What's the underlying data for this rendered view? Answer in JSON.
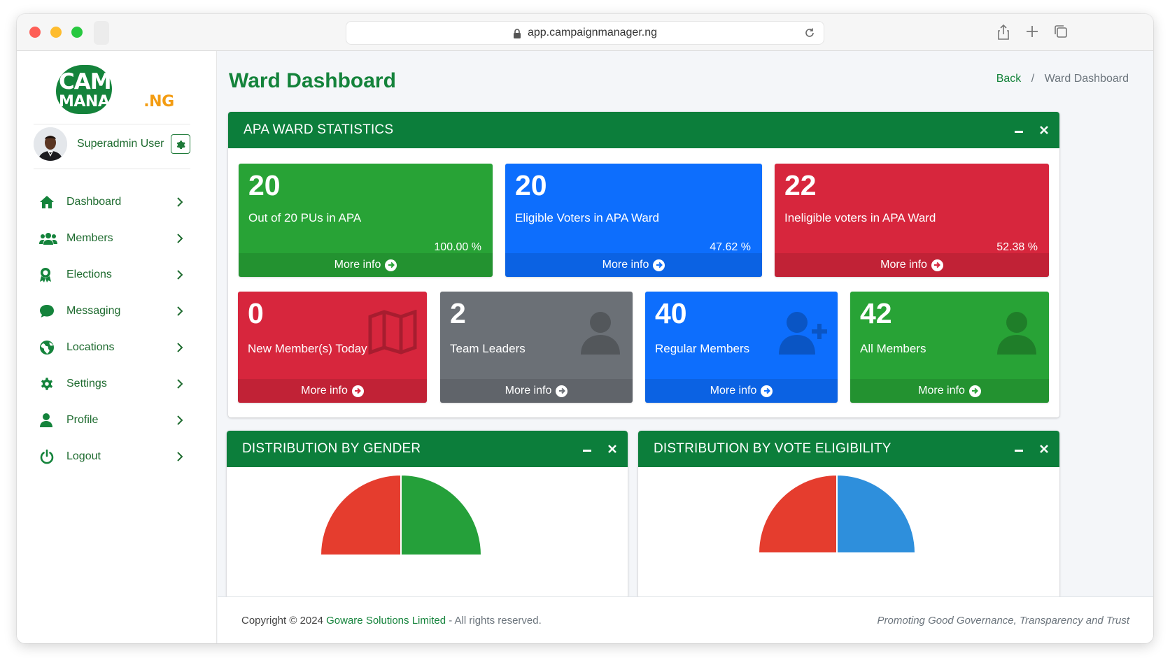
{
  "browser": {
    "url": "app.campaignmanager.ng"
  },
  "logo": {
    "line1": "CAMPAIGN",
    "line2_main": "MANAGER",
    "line2_suffix": ".NG"
  },
  "user": {
    "name": "Superadmin User"
  },
  "sidebar": {
    "items": [
      {
        "label": "Dashboard",
        "icon": "home-icon"
      },
      {
        "label": "Members",
        "icon": "users-icon"
      },
      {
        "label": "Elections",
        "icon": "award-icon"
      },
      {
        "label": "Messaging",
        "icon": "comment-icon"
      },
      {
        "label": "Locations",
        "icon": "globe-icon"
      },
      {
        "label": "Settings",
        "icon": "gear-icon"
      },
      {
        "label": "Profile",
        "icon": "user-icon"
      },
      {
        "label": "Logout",
        "icon": "power-icon"
      }
    ]
  },
  "header": {
    "title": "Ward Dashboard",
    "breadcrumb_back": "Back",
    "breadcrumb_sep": "/",
    "breadcrumb_current": "Ward Dashboard"
  },
  "stats_card": {
    "title": "APA WARD STATISTICS"
  },
  "stat_boxes_top": [
    {
      "value": "20",
      "label": "Out of 20 PUs in APA",
      "percent": "100.00 %",
      "more": "More info",
      "color": "#28a336"
    },
    {
      "value": "20",
      "label": "Eligible Voters in APA Ward",
      "percent": "47.62 %",
      "more": "More info",
      "color": "#0d6efd"
    },
    {
      "value": "22",
      "label": "Ineligible voters in APA Ward",
      "percent": "52.38 %",
      "more": "More info",
      "color": "#d7263d"
    }
  ],
  "stat_boxes_bottom": [
    {
      "value": "0",
      "label": "New Member(s) Today",
      "more": "More info",
      "icon": "map-icon",
      "color": "#d7263d"
    },
    {
      "value": "2",
      "label": "Team Leaders",
      "more": "More info",
      "icon": "user-icon",
      "color": "#6b7076"
    },
    {
      "value": "40",
      "label": "Regular Members",
      "more": "More info",
      "icon": "user-plus-icon",
      "color": "#0d6efd"
    },
    {
      "value": "42",
      "label": "All Members",
      "more": "More info",
      "icon": "user-icon",
      "color": "#28a336"
    }
  ],
  "gender_card": {
    "title": "DISTRIBUTION BY GENDER",
    "colors": [
      "#e53d2e",
      "#25a03a"
    ]
  },
  "eligibility_card": {
    "title": "DISTRIBUTION BY VOTE ELIGIBILITY",
    "colors": [
      "#e53d2e",
      "#2e8fdc"
    ]
  },
  "footer": {
    "copyright": "Copyright © 2024",
    "company": "Goware Solutions Limited",
    "rights": "- All rights reserved.",
    "tagline": "Promoting Good Governance, Transparency and Trust"
  }
}
